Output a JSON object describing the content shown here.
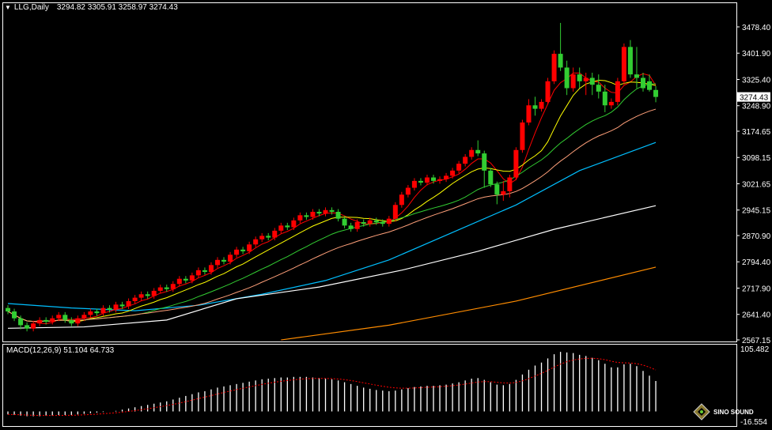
{
  "header": {
    "symbol": "LLG,Daily",
    "ohlc_text": "3294.82 3305.91 3258.97 3274.43"
  },
  "macd_label": "MACD(12,26,9) 51.104 64.733",
  "logo": {
    "text": "SINO SOUND"
  },
  "colors": {
    "background": "#000000",
    "bull": "#ff0000",
    "bear": "#32cd32",
    "axis": "#ffffff",
    "macd_hist": "#ffffff",
    "macd_signal": "#ff0000"
  },
  "chart_data": [
    {
      "type": "candlestick",
      "title": "LLG,Daily",
      "ylim": [
        2567.15,
        3478.4
      ],
      "y_ticks": [
        "3478.40",
        "3401.90",
        "3325.40",
        "3248.90",
        "3174.65",
        "3098.15",
        "3021.65",
        "2945.15",
        "2870.90",
        "2794.40",
        "2717.90",
        "2641.40",
        "2567.15"
      ],
      "current_price": "3274.43",
      "ohlc": [
        [
          2660,
          2668,
          2642,
          2650
        ],
        [
          2650,
          2658,
          2622,
          2630
        ],
        [
          2630,
          2638,
          2598,
          2610
        ],
        [
          2610,
          2618,
          2592,
          2600
        ],
        [
          2600,
          2623,
          2592,
          2615
        ],
        [
          2615,
          2633,
          2607,
          2625
        ],
        [
          2625,
          2633,
          2612,
          2620
        ],
        [
          2620,
          2638,
          2612,
          2630
        ],
        [
          2630,
          2648,
          2622,
          2640
        ],
        [
          2640,
          2648,
          2617,
          2625
        ],
        [
          2625,
          2633,
          2607,
          2615
        ],
        [
          2615,
          2638,
          2607,
          2630
        ],
        [
          2630,
          2648,
          2622,
          2640
        ],
        [
          2640,
          2658,
          2632,
          2650
        ],
        [
          2650,
          2658,
          2637,
          2645
        ],
        [
          2645,
          2668,
          2637,
          2660
        ],
        [
          2660,
          2668,
          2647,
          2655
        ],
        [
          2655,
          2678,
          2647,
          2670
        ],
        [
          2670,
          2678,
          2657,
          2665
        ],
        [
          2665,
          2688,
          2657,
          2680
        ],
        [
          2680,
          2698,
          2672,
          2690
        ],
        [
          2690,
          2708,
          2682,
          2700
        ],
        [
          2700,
          2708,
          2687,
          2695
        ],
        [
          2695,
          2718,
          2687,
          2710
        ],
        [
          2710,
          2728,
          2702,
          2720
        ],
        [
          2720,
          2728,
          2707,
          2715
        ],
        [
          2715,
          2738,
          2707,
          2730
        ],
        [
          2730,
          2753,
          2722,
          2745
        ],
        [
          2745,
          2753,
          2732,
          2740
        ],
        [
          2740,
          2763,
          2732,
          2755
        ],
        [
          2755,
          2778,
          2747,
          2770
        ],
        [
          2770,
          2778,
          2757,
          2765
        ],
        [
          2765,
          2793,
          2757,
          2785
        ],
        [
          2785,
          2808,
          2777,
          2800
        ],
        [
          2800,
          2808,
          2787,
          2795
        ],
        [
          2795,
          2823,
          2787,
          2815
        ],
        [
          2815,
          2838,
          2807,
          2830
        ],
        [
          2830,
          2838,
          2817,
          2825
        ],
        [
          2825,
          2853,
          2817,
          2845
        ],
        [
          2845,
          2868,
          2837,
          2860
        ],
        [
          2860,
          2878,
          2852,
          2870
        ],
        [
          2870,
          2878,
          2857,
          2865
        ],
        [
          2865,
          2893,
          2857,
          2885
        ],
        [
          2885,
          2908,
          2877,
          2900
        ],
        [
          2900,
          2908,
          2887,
          2895
        ],
        [
          2895,
          2923,
          2887,
          2915
        ],
        [
          2915,
          2938,
          2907,
          2930
        ],
        [
          2930,
          2938,
          2917,
          2925
        ],
        [
          2925,
          2948,
          2917,
          2940
        ],
        [
          2940,
          2948,
          2927,
          2935
        ],
        [
          2935,
          2953,
          2927,
          2945
        ],
        [
          2945,
          2953,
          2932,
          2940
        ],
        [
          2940,
          2948,
          2912,
          2920
        ],
        [
          2920,
          2928,
          2892,
          2900
        ],
        [
          2900,
          2908,
          2882,
          2890
        ],
        [
          2890,
          2918,
          2882,
          2910
        ],
        [
          2910,
          2918,
          2897,
          2905
        ],
        [
          2905,
          2923,
          2897,
          2915
        ],
        [
          2915,
          2923,
          2902,
          2910
        ],
        [
          2910,
          2918,
          2897,
          2905
        ],
        [
          2905,
          2928,
          2897,
          2920
        ],
        [
          2920,
          2968,
          2912,
          2960
        ],
        [
          2960,
          2998,
          2952,
          2990
        ],
        [
          2990,
          3018,
          2982,
          3010
        ],
        [
          3010,
          3038,
          3002,
          3030
        ],
        [
          3030,
          3038,
          3017,
          3025
        ],
        [
          3025,
          3048,
          3017,
          3040
        ],
        [
          3040,
          3048,
          3022,
          3030
        ],
        [
          3030,
          3043,
          3022,
          3035
        ],
        [
          3035,
          3053,
          3027,
          3045
        ],
        [
          3045,
          3068,
          3037,
          3060
        ],
        [
          3060,
          3088,
          3052,
          3080
        ],
        [
          3080,
          3108,
          3072,
          3100
        ],
        [
          3100,
          3128,
          3092,
          3120
        ],
        [
          3120,
          3148,
          3102,
          3110
        ],
        [
          3110,
          3118,
          3010,
          3060
        ],
        [
          3060,
          3068,
          3012,
          3020
        ],
        [
          3020,
          3028,
          2962,
          2990
        ],
        [
          2990,
          3030,
          2972,
          3000
        ],
        [
          3000,
          3048,
          2982,
          3040
        ],
        [
          3040,
          3128,
          3032,
          3120
        ],
        [
          3120,
          3208,
          3112,
          3200
        ],
        [
          3200,
          3268,
          3192,
          3250
        ],
        [
          3250,
          3275,
          3220,
          3240
        ],
        [
          3240,
          3268,
          3232,
          3260
        ],
        [
          3260,
          3330,
          3252,
          3320
        ],
        [
          3320,
          3410,
          3312,
          3400
        ],
        [
          3400,
          3490,
          3350,
          3360
        ],
        [
          3360,
          3380,
          3280,
          3300
        ],
        [
          3300,
          3360,
          3290,
          3340
        ],
        [
          3340,
          3360,
          3300,
          3320
        ],
        [
          3320,
          3345,
          3280,
          3330
        ],
        [
          3330,
          3345,
          3280,
          3310
        ],
        [
          3310,
          3340,
          3270,
          3290
        ],
        [
          3290,
          3310,
          3230,
          3250
        ],
        [
          3250,
          3270,
          3240,
          3260
        ],
        [
          3260,
          3330,
          3250,
          3320
        ],
        [
          3320,
          3430,
          3310,
          3420
        ],
        [
          3420,
          3440,
          3330,
          3340
        ],
        [
          3340,
          3420,
          3300,
          3330
        ],
        [
          3330,
          3345,
          3290,
          3300
        ],
        [
          3320,
          3340,
          3290,
          3295
        ],
        [
          3294.82,
          3305.91,
          3258.97,
          3274.43
        ]
      ],
      "moving_averages": [
        {
          "period": 5,
          "color": "#ff0000"
        },
        {
          "period": 10,
          "color": "#ffff00"
        },
        {
          "period": 20,
          "color": "#32cd32"
        },
        {
          "period": 30,
          "color": "#ffa07a"
        }
      ],
      "long_lines": [
        {
          "color": "#00bfff",
          "points": [
            [
              0,
              2673
            ],
            [
              10,
              2660
            ],
            [
              20,
              2652
            ],
            [
              30,
              2668
            ],
            [
              40,
              2700
            ],
            [
              50,
              2740
            ],
            [
              60,
              2800
            ],
            [
              70,
              2880
            ],
            [
              80,
              2960
            ],
            [
              90,
              3060
            ],
            [
              102,
              3142
            ]
          ]
        },
        {
          "color": "#ffffff",
          "points": [
            [
              0,
              2601
            ],
            [
              12,
              2605
            ],
            [
              25,
              2625
            ],
            [
              36,
              2687
            ],
            [
              49,
              2721
            ],
            [
              62,
              2770
            ],
            [
              74,
              2825
            ],
            [
              86,
              2889
            ],
            [
              102,
              2958
            ]
          ]
        },
        {
          "color": "#ff8c00",
          "points": [
            [
              43,
              2567
            ],
            [
              60,
              2610
            ],
            [
              80,
              2680
            ],
            [
              102,
              2779
            ]
          ]
        }
      ]
    },
    {
      "type": "bar",
      "title": "MACD(12,26,9)",
      "ylim": [
        -16.554,
        105.482
      ],
      "y_ticks": [
        "105.482",
        "-16.554"
      ],
      "signal_period": 9,
      "histogram": [
        -5,
        -6,
        -7,
        -8,
        -8,
        -8,
        -7,
        -7,
        -6,
        -6,
        -6,
        -5,
        -4,
        -3,
        -2,
        -1,
        0,
        1,
        3,
        5,
        7,
        9,
        11,
        13,
        15,
        17,
        20,
        23,
        26,
        29,
        32,
        34,
        37,
        40,
        42,
        44,
        46,
        48,
        50,
        52,
        54,
        55,
        56,
        57,
        57,
        58,
        58,
        58,
        57,
        56,
        55,
        54,
        52,
        49,
        46,
        43,
        40,
        38,
        36,
        35,
        34,
        35,
        37,
        39,
        41,
        42,
        43,
        43,
        44,
        45,
        47,
        49,
        52,
        55,
        56,
        53,
        49,
        45,
        44,
        46,
        53,
        62,
        70,
        77,
        82,
        89,
        96,
        100,
        99,
        98,
        95,
        93,
        90,
        86,
        80,
        74,
        74,
        79,
        80,
        76,
        68,
        60,
        51.104
      ],
      "last_values": {
        "macd": 51.104,
        "signal": 64.733
      }
    }
  ]
}
